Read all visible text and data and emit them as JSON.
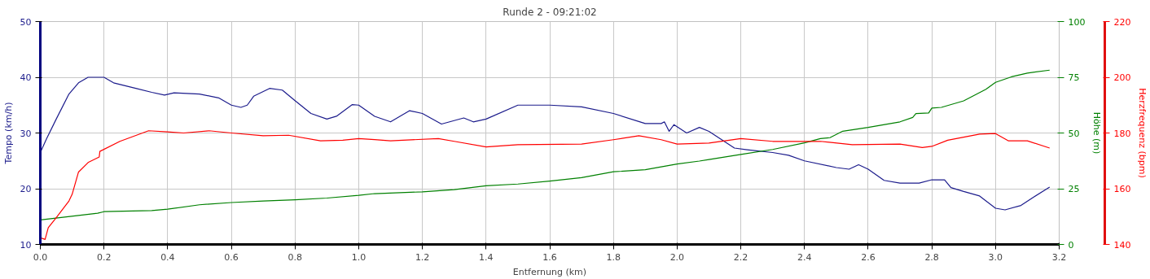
{
  "chart_data": {
    "type": "line",
    "title": "Runde 2 - 09:21:02",
    "xlabel": "Entfernung (km)",
    "ylabel": "Tempo (km/h)",
    "y2label": "Höhe (m)",
    "y3label": "Herzfrequenz (bpm)",
    "xlim": [
      0,
      3.2
    ],
    "xticks": [
      {
        "value": 0,
        "label": "0.0"
      },
      0.2,
      0.4,
      0.6,
      0.8,
      {
        "value": 1,
        "label": "1.0"
      },
      1.2,
      1.4,
      1.6,
      1.8,
      {
        "value": 2,
        "label": "2.0"
      },
      2.2,
      2.4,
      2.6,
      2.8,
      {
        "value": 3,
        "label": "3.0"
      },
      3.2
    ],
    "ylim": [
      10,
      50
    ],
    "yticks": [
      10,
      20,
      30,
      40,
      50
    ],
    "y2lim": [
      0,
      100
    ],
    "y2ticks": [
      0,
      25,
      50,
      75,
      100
    ],
    "y3lim": [
      140,
      220
    ],
    "y3ticks": [
      140,
      160,
      180,
      200,
      220
    ],
    "grid": true,
    "marker": "none",
    "line_style": "solid",
    "series": [
      {
        "color": "#1c1c8c",
        "x": [
          0,
          0.02,
          0.05,
          0.09,
          0.12,
          0.15,
          0.2,
          0.23,
          0.3,
          0.35,
          0.39,
          0.42,
          0.5,
          0.56,
          0.6,
          0.63,
          0.65,
          0.67,
          0.72,
          0.76,
          0.8,
          0.85,
          0.9,
          0.93,
          0.98,
          1.0,
          1.05,
          1.1,
          1.16,
          1.2,
          1.26,
          1.33,
          1.36,
          1.4,
          1.5,
          1.6,
          1.7,
          1.8,
          1.9,
          1.95,
          1.96,
          1.975,
          1.99,
          2.03,
          2.07,
          2.1,
          2.18,
          2.22,
          2.3,
          2.35,
          2.4,
          2.5,
          2.54,
          2.57,
          2.6,
          2.65,
          2.7,
          2.76,
          2.8,
          2.84,
          2.86,
          2.9,
          2.95,
          3.0,
          3.03,
          3.08,
          3.12,
          3.17
        ],
        "values": [
          26.5,
          29,
          32.5,
          37,
          39,
          40,
          40,
          39,
          38,
          37.3,
          36.8,
          37.2,
          37,
          36.3,
          35,
          34.6,
          35,
          36.6,
          38,
          37.7,
          35.8,
          33.5,
          32.5,
          33,
          35.1,
          35,
          33,
          32,
          34,
          33.5,
          31.6,
          32.7,
          32,
          32.5,
          35,
          35,
          34.7,
          33.5,
          31.7,
          31.7,
          32,
          30.3,
          31.5,
          30,
          31,
          30.3,
          27.3,
          27,
          26.5,
          26,
          25,
          23.8,
          23.5,
          24.3,
          23.5,
          21.5,
          21,
          21,
          21.6,
          21.6,
          20.2,
          19.5,
          18.7,
          16.5,
          16.2,
          17,
          18.5,
          20.3
        ]
      },
      {
        "color": "#008000",
        "axis": "y2",
        "x": [
          0,
          0.18,
          0.2,
          0.35,
          0.4,
          0.5,
          0.6,
          0.7,
          0.8,
          0.9,
          1.0,
          1.05,
          1.2,
          1.3,
          1.4,
          1.5,
          1.6,
          1.7,
          1.8,
          1.9,
          1.95,
          2.0,
          2.07,
          2.1,
          2.2,
          2.3,
          2.4,
          2.45,
          2.48,
          2.52,
          2.6,
          2.7,
          2.74,
          2.75,
          2.79,
          2.8,
          2.83,
          2.9,
          2.97,
          3.0,
          3.05,
          3.1,
          3.17
        ],
        "values": [
          11,
          14,
          14.7,
          15.2,
          15.8,
          17.8,
          18.8,
          19.5,
          20,
          20.8,
          22,
          22.8,
          23.6,
          24.6,
          26.3,
          27.1,
          28.4,
          30,
          32.6,
          33.5,
          34.8,
          36.1,
          37.4,
          38.1,
          40.4,
          42.6,
          45.6,
          47.5,
          47.9,
          50.8,
          52.5,
          55,
          57,
          58.7,
          59,
          61.2,
          61.5,
          64.4,
          69.6,
          72.7,
          75.2,
          76.9,
          78.2
        ]
      },
      {
        "color": "#ff0000",
        "axis": "y3",
        "x": [
          0,
          0.01,
          0.015,
          0.025,
          0.05,
          0.09,
          0.1,
          0.12,
          0.15,
          0.185,
          0.187,
          0.25,
          0.34,
          0.4,
          0.45,
          0.53,
          0.6,
          0.7,
          0.78,
          0.88,
          0.95,
          1.0,
          1.05,
          1.1,
          1.25,
          1.3,
          1.4,
          1.5,
          1.7,
          1.8,
          1.88,
          1.95,
          2.0,
          2.1,
          2.2,
          2.3,
          2.45,
          2.55,
          2.7,
          2.77,
          2.8,
          2.85,
          2.95,
          3.0,
          3.04,
          3.1,
          3.17
        ],
        "values": [
          142.4,
          142,
          141.8,
          146,
          149.6,
          155.6,
          158,
          166,
          169.4,
          171.4,
          173.4,
          177,
          180.8,
          180.4,
          180,
          180.8,
          180,
          179,
          179.2,
          177.2,
          177.4,
          178,
          177.6,
          177.2,
          178,
          177,
          175,
          175.8,
          176,
          177.6,
          179,
          177.6,
          176,
          176.4,
          178,
          177,
          177,
          175.8,
          176,
          174.8,
          175.2,
          177.4,
          179.6,
          179.8,
          177.2,
          177.2,
          174.6
        ]
      }
    ]
  }
}
